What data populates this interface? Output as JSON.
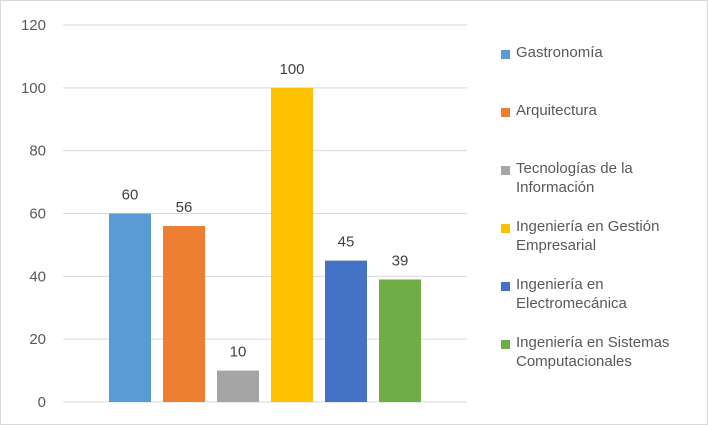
{
  "chart_data": {
    "type": "bar",
    "title": "",
    "xlabel": "",
    "ylabel": "",
    "ylim": [
      0,
      120
    ],
    "yticks": [
      0,
      20,
      40,
      60,
      80,
      100,
      120
    ],
    "grid": true,
    "legend_position": "right",
    "categories": [
      "Gastronomía",
      "Arquitectura",
      "Tecnologías de la Información",
      "Ingeniería en Gestión Empresarial",
      "Ingeniería en Electromecánica",
      "Ingeniería en Sistemas Computacionales"
    ],
    "values": [
      60,
      56,
      10,
      100,
      45,
      39
    ],
    "colors": [
      "#5B9BD5",
      "#ED7D31",
      "#A5A5A5",
      "#FFC000",
      "#4472C4",
      "#70AD47"
    ],
    "legend": [
      {
        "label": "Gastronomía",
        "color": "#5B9BD5"
      },
      {
        "label": "Arquitectura",
        "color": "#ED7D31"
      },
      {
        "label": "Tecnologías de la Información",
        "color": "#A5A5A5"
      },
      {
        "label": "Ingeniería en Gestión Empresarial",
        "color": "#FFC000"
      },
      {
        "label": "Ingeniería en Electromecánica",
        "color": "#4472C4"
      },
      {
        "label": "Ingeniería en Sistemas Computacionales",
        "color": "#70AD47"
      }
    ]
  }
}
